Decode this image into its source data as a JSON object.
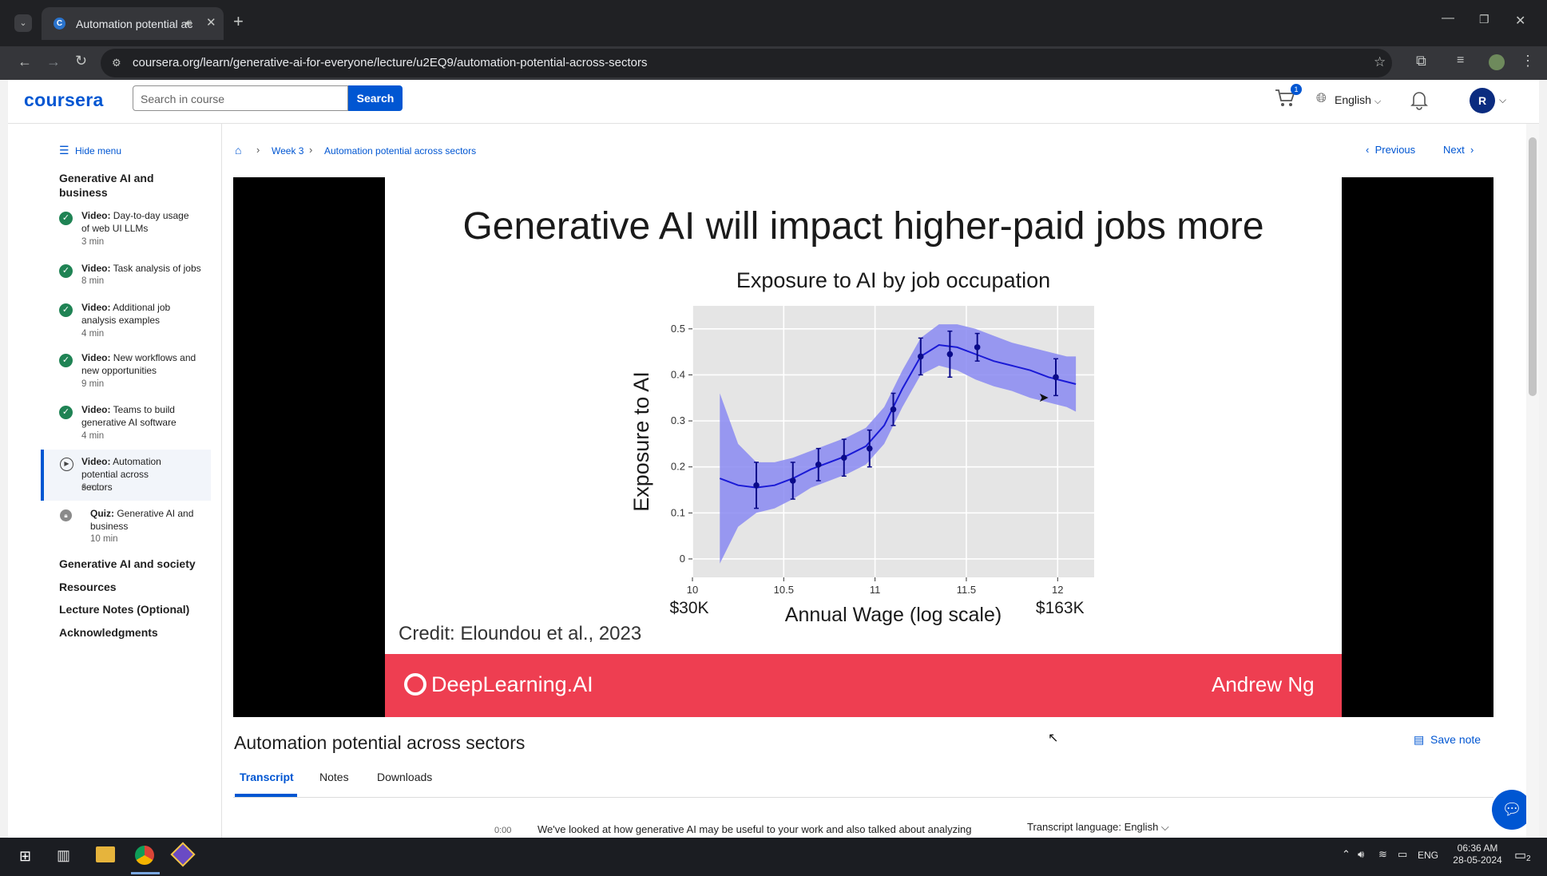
{
  "browser": {
    "tab_title": "Automation potential across sectors",
    "new_tab": "+",
    "url": "coursera.org/learn/generative-ai-for-everyone/lecture/u2EQ9/automation-potential-across-sectors"
  },
  "header": {
    "logo": "coursera",
    "search_placeholder": "Search in course",
    "search_button": "Search",
    "cart_count": "1",
    "language": "English",
    "avatar_initial": "R"
  },
  "sidebar": {
    "hide_menu": "Hide menu",
    "module_title": "Generative AI and business",
    "items": [
      {
        "type": "Video:",
        "title": "Day-to-day usage of web UI LLMs",
        "duration": "3 min",
        "status": "done"
      },
      {
        "type": "Video:",
        "title": "Task analysis of jobs",
        "duration": "8 min",
        "status": "done"
      },
      {
        "type": "Video:",
        "title": "Additional job analysis examples",
        "duration": "4 min",
        "status": "done"
      },
      {
        "type": "Video:",
        "title": "New workflows and new opportunities",
        "duration": "9 min",
        "status": "done"
      },
      {
        "type": "Video:",
        "title": "Teams to build generative AI software",
        "duration": "4 min",
        "status": "done"
      },
      {
        "type": "Video:",
        "title": "Automation potential across sectors",
        "duration": "6 min",
        "status": "current"
      },
      {
        "type": "Quiz:",
        "title": "Generative AI and business",
        "duration": "10 min",
        "status": "locked"
      }
    ],
    "sections": [
      "Generative AI and society",
      "Resources",
      "Lecture Notes (Optional)",
      "Acknowledgments"
    ]
  },
  "breadcrumb": {
    "week": "Week 3",
    "page": "Automation potential across sectors"
  },
  "nav": {
    "previous": "Previous",
    "next": "Next"
  },
  "slide": {
    "headline": "Generative AI will impact higher-paid jobs more",
    "credit": "Credit: Eloundou et al., 2023",
    "brand": "DeepLearning.AI",
    "presenter": "Andrew Ng",
    "wage_low": "$30K",
    "wage_high": "$163K"
  },
  "chart_data": {
    "type": "line",
    "title": "Exposure to AI by job occupation",
    "xlabel": "Annual Wage (log scale)",
    "ylabel": "Exposure to AI",
    "xlim": [
      10,
      12.2
    ],
    "ylim": [
      -0.04,
      0.55
    ],
    "x_ticks": [
      "10",
      "10.5",
      "11",
      "11.5",
      "12"
    ],
    "y_ticks": [
      "0",
      "0.1",
      "0.2",
      "0.3",
      "0.4",
      "0.5"
    ],
    "points": [
      {
        "x": 10.35,
        "y": 0.16,
        "err": 0.05
      },
      {
        "x": 10.55,
        "y": 0.17,
        "err": 0.04
      },
      {
        "x": 10.69,
        "y": 0.205,
        "err": 0.035
      },
      {
        "x": 10.83,
        "y": 0.22,
        "err": 0.04
      },
      {
        "x": 10.97,
        "y": 0.24,
        "err": 0.04
      },
      {
        "x": 11.1,
        "y": 0.325,
        "err": 0.035
      },
      {
        "x": 11.25,
        "y": 0.44,
        "err": 0.04
      },
      {
        "x": 11.41,
        "y": 0.445,
        "err": 0.05
      },
      {
        "x": 11.56,
        "y": 0.46,
        "err": 0.03
      },
      {
        "x": 11.99,
        "y": 0.395,
        "err": 0.04
      }
    ],
    "smooth_line": {
      "x": [
        10.15,
        10.25,
        10.35,
        10.45,
        10.55,
        10.65,
        10.75,
        10.85,
        10.95,
        11.05,
        11.15,
        11.25,
        11.35,
        11.45,
        11.55,
        11.65,
        11.75,
        11.85,
        11.95,
        12.05,
        12.1
      ],
      "y": [
        0.175,
        0.16,
        0.155,
        0.16,
        0.175,
        0.195,
        0.21,
        0.225,
        0.245,
        0.29,
        0.37,
        0.44,
        0.465,
        0.46,
        0.445,
        0.43,
        0.42,
        0.41,
        0.395,
        0.385,
        0.38
      ]
    },
    "band_upper": [
      0.36,
      0.25,
      0.21,
      0.21,
      0.22,
      0.235,
      0.25,
      0.265,
      0.285,
      0.33,
      0.41,
      0.48,
      0.51,
      0.51,
      0.5,
      0.485,
      0.47,
      0.46,
      0.45,
      0.44,
      0.44
    ],
    "band_lower": [
      -0.01,
      0.07,
      0.1,
      0.11,
      0.13,
      0.155,
      0.17,
      0.185,
      0.205,
      0.25,
      0.33,
      0.4,
      0.42,
      0.41,
      0.39,
      0.375,
      0.365,
      0.35,
      0.34,
      0.33,
      0.32
    ],
    "colors": {
      "line": "#1a1ad6",
      "band": "#8a8af2",
      "panel": "#e5e5e5"
    },
    "grid": true
  },
  "lecture": {
    "title": "Automation potential across sectors",
    "save_note": "Save note",
    "tabs": [
      "Transcript",
      "Notes",
      "Downloads"
    ],
    "active_tab": "Transcript",
    "transcript_time": "0:00",
    "transcript_text": "We've looked at how generative AI may be useful to your work and also talked about analyzing",
    "transcript_language_label": "Transcript language:",
    "transcript_language": "English"
  },
  "taskbar": {
    "lang": "ENG",
    "time": "06:36 AM",
    "date": "28-05-2024",
    "notifications": "2"
  }
}
